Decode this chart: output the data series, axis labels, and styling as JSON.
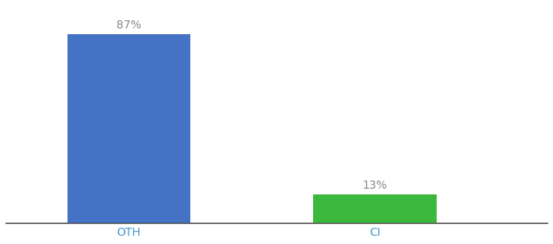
{
  "categories": [
    "OTH",
    "CI"
  ],
  "values": [
    87,
    13
  ],
  "bar_colors": [
    "#4472c4",
    "#3cb93c"
  ],
  "ylim": [
    0,
    100
  ],
  "bar_width": 0.5,
  "background_color": "#ffffff",
  "label_fontsize": 10,
  "tick_fontsize": 10,
  "value_labels": [
    "87%",
    "13%"
  ],
  "positions": [
    1,
    2
  ],
  "xlim": [
    0.5,
    2.7
  ]
}
